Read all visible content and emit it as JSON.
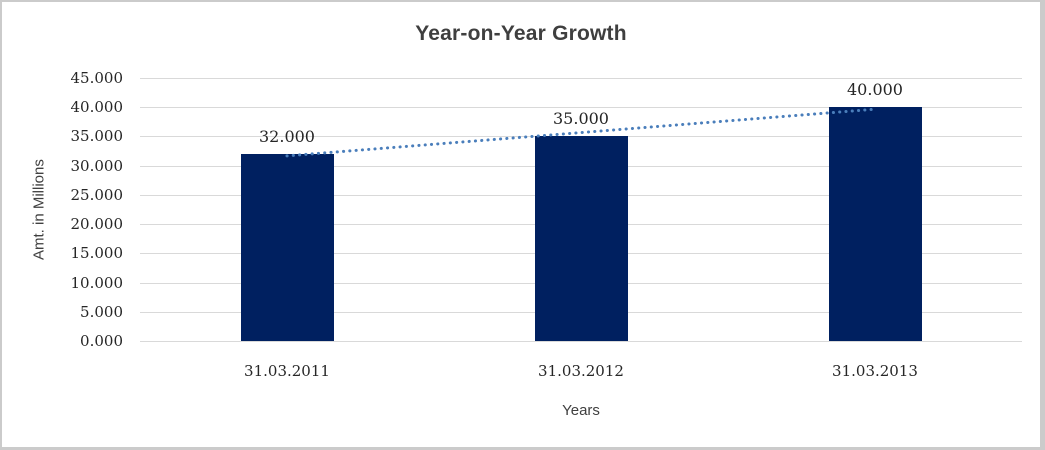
{
  "window": {
    "background": "#FFFFFF",
    "frame_border_color": "#CBCBCB"
  },
  "chart_data": {
    "type": "bar",
    "title": "Year-on-Year Growth",
    "xlabel": "Years",
    "ylabel": "Amt. in Millions",
    "categories": [
      "31.03.2011",
      "31.03.2012",
      "31.03.2013"
    ],
    "values": [
      32,
      35,
      40
    ],
    "data_labels": [
      "32.000",
      "35.000",
      "40.000"
    ],
    "y_ticks": [
      "0.000",
      "5.000",
      "10.000",
      "15.000",
      "20.000",
      "25.000",
      "30.000",
      "35.000",
      "40.000",
      "45.000"
    ],
    "y_tick_values": [
      0,
      5,
      10,
      15,
      20,
      25,
      30,
      35,
      40,
      45
    ],
    "ylim": [
      0,
      45
    ],
    "y_step": 5,
    "grid": true,
    "legend": "none",
    "trendline": {
      "type": "linear",
      "style": "dotted",
      "color": "#4A7EBB"
    },
    "colors": {
      "bar": "#002060",
      "gridline": "#D9D9D9",
      "title_text": "#3F3F3F",
      "axis_number_text": "#262626",
      "axis_title_text": "#404040"
    }
  }
}
